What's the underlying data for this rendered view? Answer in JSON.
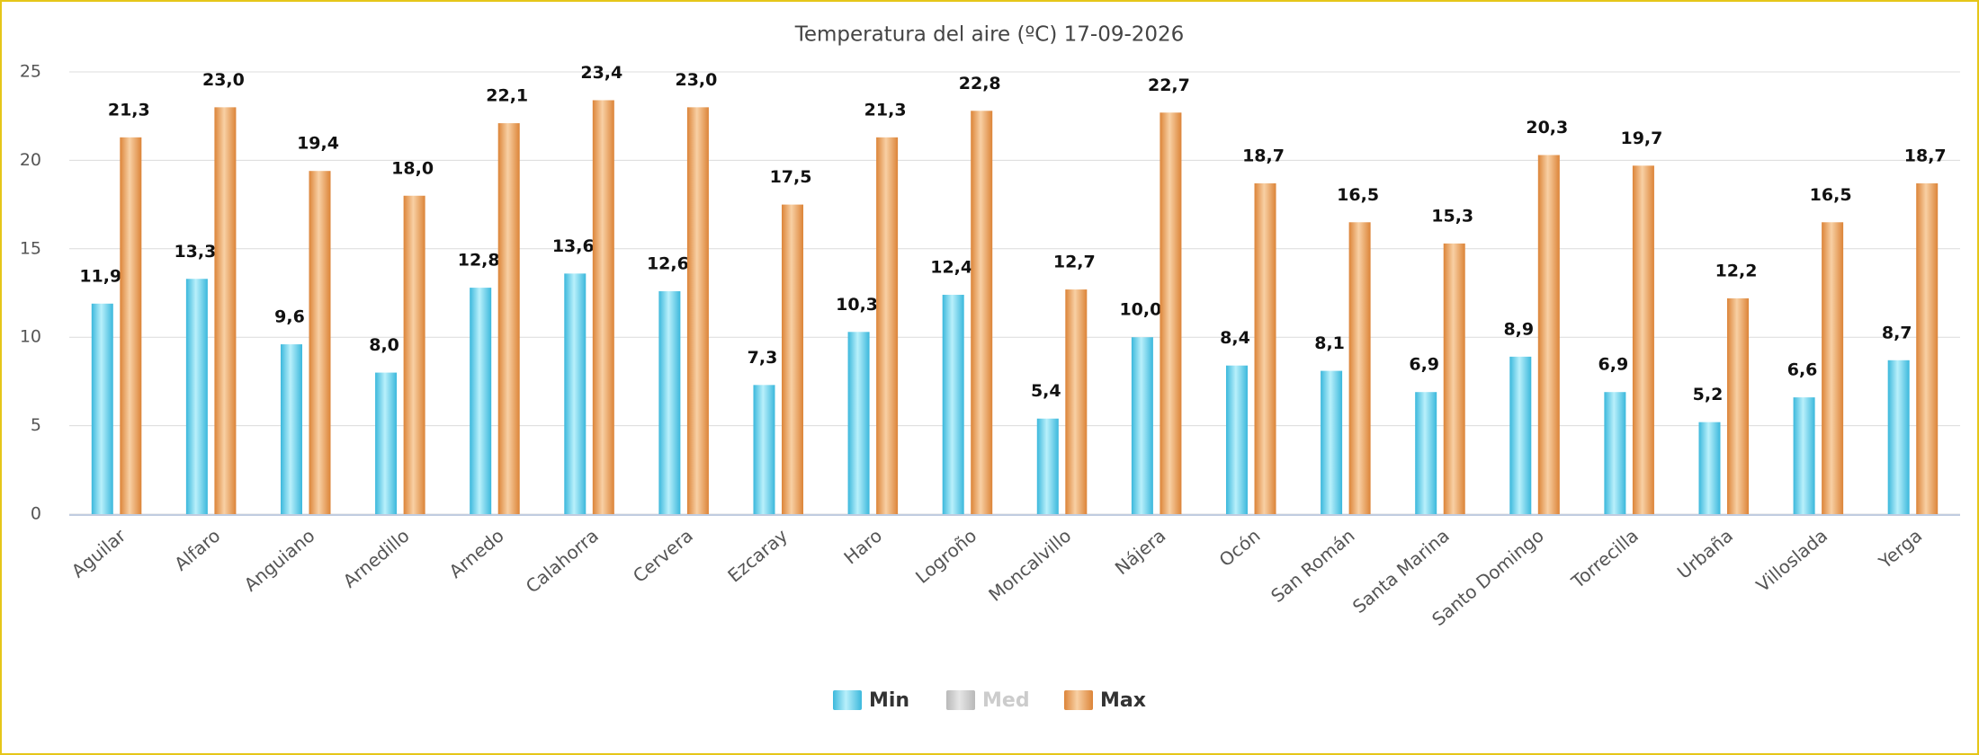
{
  "chart_data": {
    "type": "bar",
    "title": "Temperatura del aire (ºC) 17-09-2026",
    "categories": [
      "Aguilar",
      "Alfaro",
      "Anguiano",
      "Arnedillo",
      "Arnedo",
      "Calahorra",
      "Cervera",
      "Ezcaray",
      "Haro",
      "Logroño",
      "Moncalvillo",
      "Nájera",
      "Ocón",
      "San Román",
      "Santa Marina",
      "Santo Domingo",
      "Torrecilla",
      "Urbaña",
      "Villoslada",
      "Yerga"
    ],
    "series": [
      {
        "name": "Min",
        "color": "#4fc8e8",
        "visible": true,
        "values": [
          11.9,
          13.3,
          9.6,
          8.0,
          12.8,
          13.6,
          12.6,
          7.3,
          10.3,
          12.4,
          5.4,
          10.0,
          8.4,
          8.1,
          6.9,
          8.9,
          6.9,
          5.2,
          6.6,
          8.7
        ],
        "value_labels": [
          "11,9",
          "13,3",
          "9,6",
          "8,0",
          "12,8",
          "13,6",
          "12,6",
          "7,3",
          "10,3",
          "12,4",
          "5,4",
          "10,0",
          "8,4",
          "8,1",
          "6,9",
          "8,9",
          "6,9",
          "5,2",
          "6,6",
          "8,7"
        ]
      },
      {
        "name": "Med",
        "color": "#cccccc",
        "visible": false,
        "values": [
          null,
          null,
          null,
          null,
          null,
          null,
          null,
          null,
          null,
          null,
          null,
          null,
          null,
          null,
          null,
          null,
          null,
          null,
          null,
          null
        ]
      },
      {
        "name": "Max",
        "color": "#e8964a",
        "visible": true,
        "values": [
          21.3,
          23.0,
          19.4,
          18.0,
          22.1,
          23.4,
          23.0,
          17.5,
          21.3,
          22.8,
          12.7,
          22.7,
          18.7,
          16.5,
          15.3,
          20.3,
          19.7,
          12.2,
          16.5,
          18.7
        ],
        "value_labels": [
          "21,3",
          "23,0",
          "19,4",
          "18,0",
          "22,1",
          "23,4",
          "23,0",
          "17,5",
          "21,3",
          "22,8",
          "12,7",
          "22,7",
          "18,7",
          "16,5",
          "15,3",
          "20,3",
          "19,7",
          "12,2",
          "16,5",
          "18,7"
        ]
      }
    ],
    "ylim": [
      0,
      25
    ],
    "yticks": [
      0,
      5,
      10,
      15,
      20,
      25
    ],
    "grid": true,
    "legend": "bottom"
  }
}
